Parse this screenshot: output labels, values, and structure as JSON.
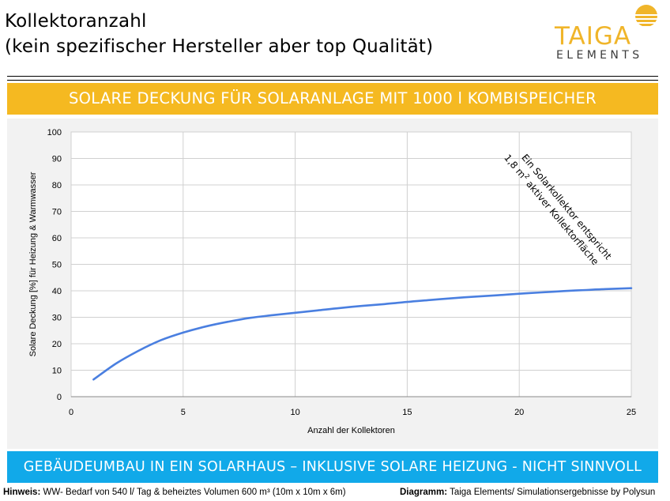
{
  "header": {
    "title_line1": "Kollektoranzahl",
    "title_line2": "(kein spezifischer Hersteller aber top Qualität)"
  },
  "logo": {
    "name": "TAIGA",
    "sub": "ELEMENTS",
    "icon": "sun-logo-icon",
    "color": "#f0b52a"
  },
  "banners": {
    "top": "SOLARE DECKUNG FÜR SOLARANLAGE MIT 1000 l KOMBISPEICHER",
    "top_color": "#f5b921",
    "bottom": "GEBÄUDEUMBAU IN EIN SOLARHAUS – INKLUSIVE SOLARE HEIZUNG  - NICHT SINNVOLL",
    "bottom_color": "#11a9e9"
  },
  "chart_data": {
    "type": "line",
    "title": "",
    "xlabel": "Anzahl der Kollektoren",
    "ylabel": "Solare Deckung [%]  für Heizung &  Warmwasser",
    "xlim": [
      0,
      25
    ],
    "ylim": [
      0,
      100
    ],
    "x_ticks": [
      0,
      5,
      10,
      15,
      20,
      25
    ],
    "y_ticks": [
      0,
      10,
      20,
      30,
      40,
      50,
      60,
      70,
      80,
      90,
      100
    ],
    "grid": true,
    "series": [
      {
        "color": "#4a7fe0",
        "x": [
          1,
          2,
          3,
          4,
          5,
          6,
          7,
          8,
          9,
          10,
          11,
          12,
          13,
          14,
          15,
          16,
          17,
          18,
          19,
          20,
          21,
          22,
          23,
          24,
          25
        ],
        "values": [
          6.5,
          12.5,
          17.3,
          21.3,
          24.2,
          26.5,
          28.3,
          29.8,
          30.8,
          31.7,
          32.6,
          33.5,
          34.3,
          35.0,
          35.8,
          36.5,
          37.2,
          37.8,
          38.3,
          38.9,
          39.4,
          39.9,
          40.3,
          40.7,
          41.0
        ]
      }
    ],
    "annotation_line1": "Ein Solarkollektor  entspricht",
    "annotation_line2_prefix": "1,8 m",
    "annotation_line2_sup": "2",
    "annotation_line2_suffix": " aktiver Kollektorfläche"
  },
  "footer": {
    "left_label": "Hinweis:",
    "left_text": " WW- Bedarf von 540 l/ Tag & beheiztes Volumen 600 m³ (10m x 10m x 6m)",
    "right_label": "Diagramm:",
    "right_text": " Taiga Elements/ Simulationsergebnisse by Polysun"
  }
}
